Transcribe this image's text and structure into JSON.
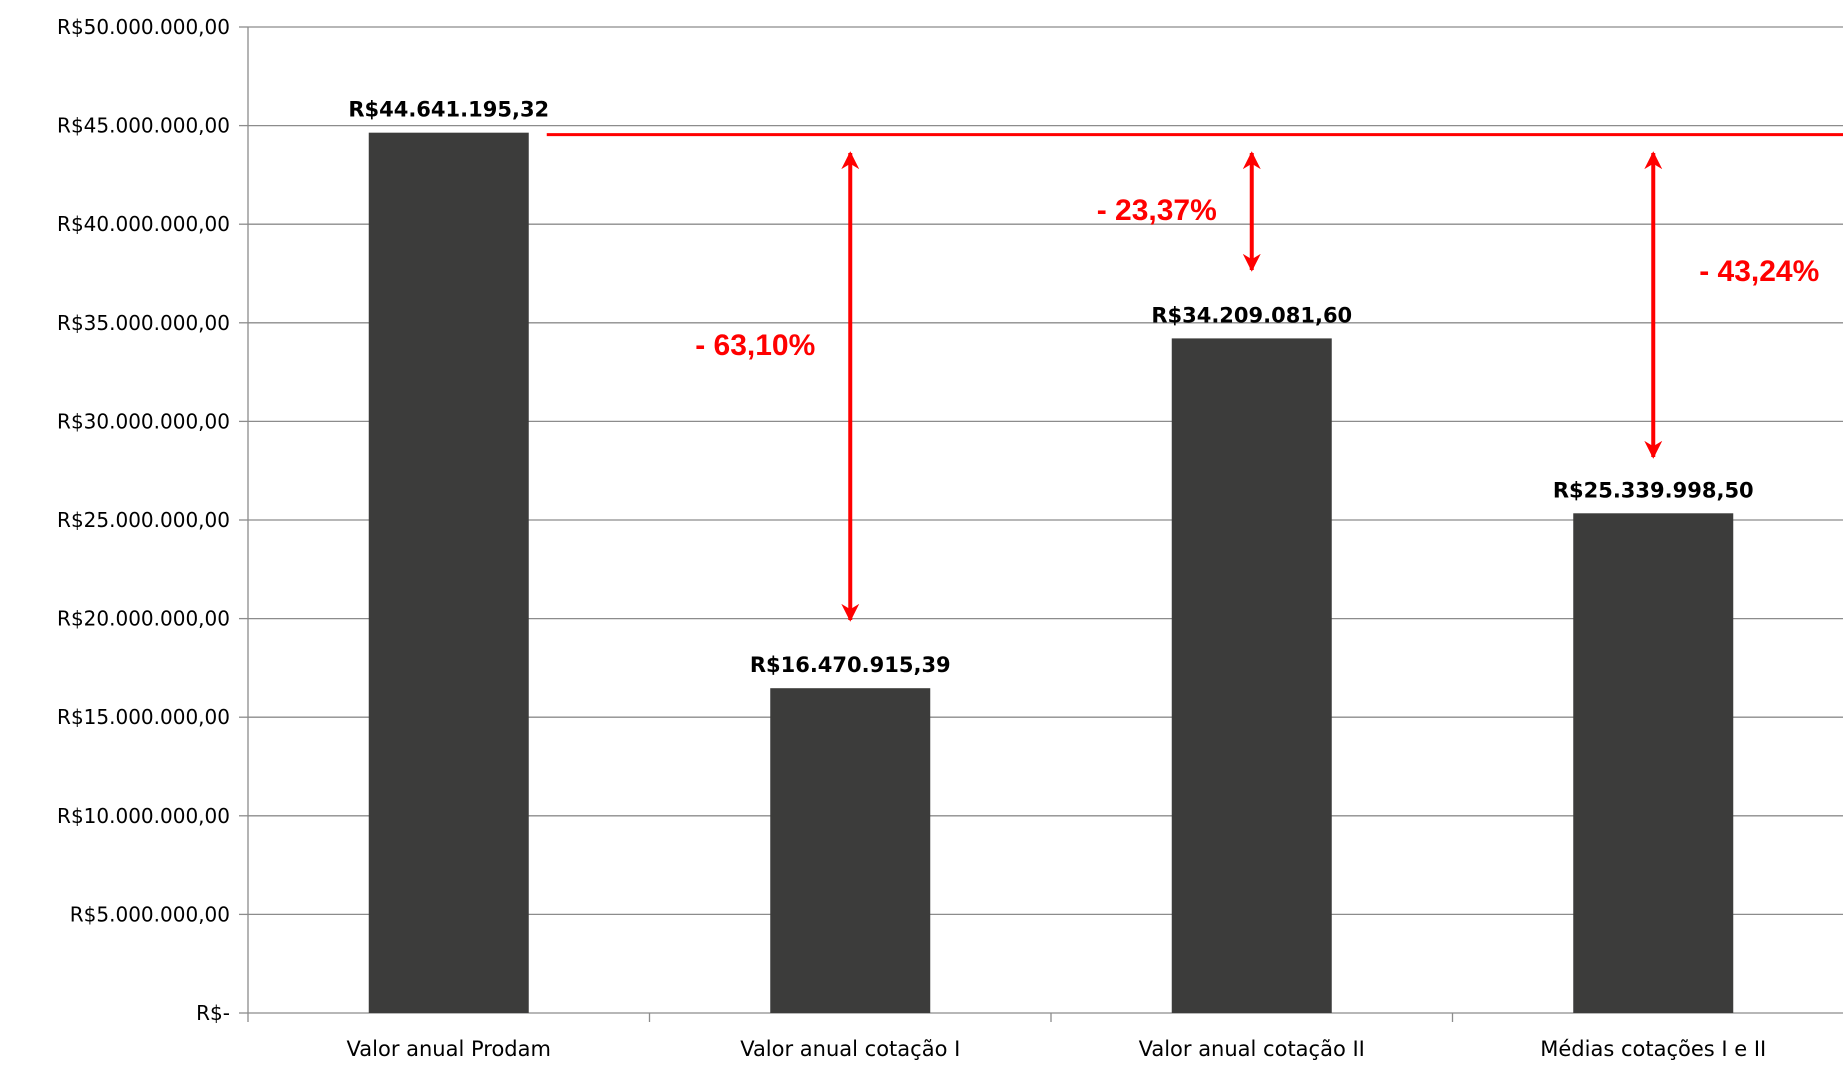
{
  "colors": {
    "bar": "#3c3c3b",
    "accent": "#ff0000",
    "grid": "#8c8c8c",
    "text": "#000000"
  },
  "chart_data": {
    "type": "bar",
    "title": "",
    "xlabel": "",
    "ylabel": "",
    "ylim": [
      0,
      50000000
    ],
    "ytick_step": 5000000,
    "grid": true,
    "legend": "none",
    "y_tick_labels": [
      "R$-",
      "R$5.000.000,00",
      "R$10.000.000,00",
      "R$15.000.000,00",
      "R$20.000.000,00",
      "R$25.000.000,00",
      "R$30.000.000,00",
      "R$35.000.000,00",
      "R$40.000.000,00",
      "R$45.000.000,00",
      "R$50.000.000,00"
    ],
    "categories": [
      "Valor anual Prodam",
      "Valor anual cotação I",
      "Valor anual cotação II",
      "Médias cotações I e II"
    ],
    "values": [
      44641195.32,
      16470915.39,
      34209081.6,
      25339998.5
    ],
    "data_labels": [
      "R$44.641.195,32",
      "R$16.470.915,39",
      "R$34.209.081,60",
      "R$25.339.998,50"
    ],
    "reference_line": {
      "value": 44641195.32
    },
    "annotations": [
      {
        "category_index": 1,
        "text": "- 63,10%",
        "from": 44641195.32,
        "to": 16470915.39
      },
      {
        "category_index": 2,
        "text": "- 23,37%",
        "from": 44641195.32,
        "to": 34209081.6
      },
      {
        "category_index": 3,
        "text": "- 43,24%",
        "from": 44641195.32,
        "to": 25339998.5
      }
    ]
  }
}
